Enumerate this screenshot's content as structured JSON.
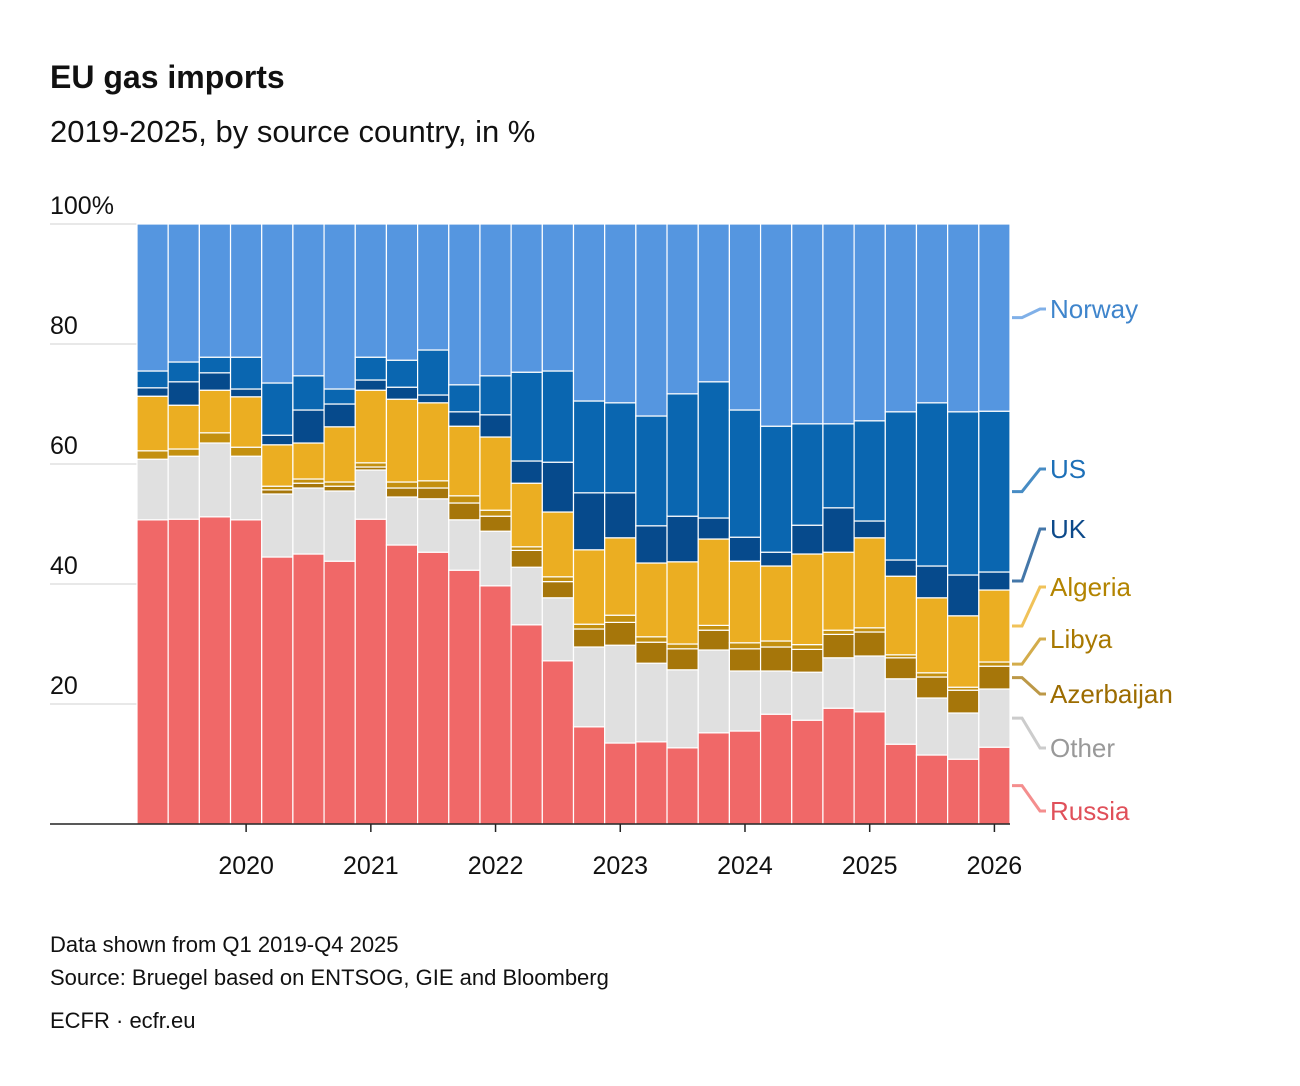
{
  "chart_data": {
    "type": "bar",
    "stacked": true,
    "title": "EU gas imports",
    "subtitle": "2019-2025, by source country, in %",
    "notes": [
      "Data shown from Q1 2019-Q4 2025",
      "Source: Bruegel based on ENTSOG, GIE and Bloomberg",
      "ECFR · ecfr.eu"
    ],
    "x": [
      2019.25,
      2019.5,
      2019.75,
      2020,
      2020.25,
      2020.5,
      2020.75,
      2021,
      2021.25,
      2021.5,
      2021.75,
      2022,
      2022.25,
      2022.5,
      2022.75,
      2023,
      2023.25,
      2023.5,
      2023.75,
      2024,
      2024.25,
      2024.5,
      2024.75,
      2025,
      2025.25,
      2025.5,
      2025.75,
      2026
    ],
    "xlim": [
      2019.125,
      2026.125
    ],
    "xticks": [
      2020,
      2021,
      2022,
      2023,
      2024,
      2025,
      2026
    ],
    "ylim": [
      0,
      100
    ],
    "yticks": [
      20,
      40,
      60,
      80,
      {
        "value": 100,
        "label": "100%"
      }
    ],
    "grid": true,
    "series": [
      {
        "name": "Russia",
        "color": "#f06868",
        "label_color": "#e0505a",
        "values": [
          50.7,
          50.8,
          51.2,
          50.7,
          44.5,
          45,
          43.8,
          50.8,
          46.5,
          45.3,
          42.3,
          39.7,
          33.2,
          27.2,
          16.2,
          13.5,
          13.7,
          12.7,
          15.2,
          15.5,
          18.3,
          17.3,
          19.3,
          18.7,
          13.3,
          11.5,
          10.8,
          12.8
        ]
      },
      {
        "name": "Other",
        "color": "#e0e0e0",
        "label_color": "#999999",
        "values": [
          10.1,
          10.5,
          12.3,
          10.6,
          10.5,
          11,
          11.7,
          8.2,
          8,
          8.9,
          8.4,
          9.1,
          9.6,
          10.5,
          13.3,
          16.3,
          13.1,
          13,
          13.8,
          10,
          7.2,
          8,
          8.4,
          9.3,
          10.9,
          9.5,
          7.7,
          9.7
        ]
      },
      {
        "name": "Azerbaijan",
        "color": "#a6760a",
        "label_color": "#9c6c00",
        "values": [
          0,
          0,
          0,
          0,
          0.7,
          0.8,
          0.8,
          0.5,
          1.5,
          1.8,
          2.8,
          2.5,
          2.8,
          2.7,
          3,
          3.8,
          3.5,
          3.5,
          3.3,
          3.7,
          4,
          3.8,
          3.9,
          4,
          3.5,
          3.5,
          3.8,
          3.8
        ]
      },
      {
        "name": "Libya",
        "color": "#c4900f",
        "label_color": "#a87800",
        "values": [
          1.4,
          1.2,
          1.7,
          1.5,
          0.6,
          0.7,
          0.7,
          0.7,
          1,
          1.2,
          1.2,
          1,
          0.6,
          0.8,
          0.8,
          1.2,
          0.9,
          0.8,
          0.8,
          1,
          1,
          0.8,
          0.7,
          0.7,
          0.5,
          0.7,
          0.5,
          0.7
        ]
      },
      {
        "name": "Algeria",
        "color": "#ebae22",
        "label_color": "#b38400",
        "values": [
          9.1,
          7.3,
          7.1,
          8.4,
          6.9,
          6,
          9.2,
          12.1,
          13.8,
          13,
          11.6,
          12.2,
          10.6,
          10.8,
          12.4,
          12.9,
          12.3,
          13.7,
          14.4,
          13.6,
          12.5,
          15.1,
          13,
          15,
          13.1,
          12.5,
          11.9,
          12
        ]
      },
      {
        "name": "UK",
        "color": "#064a8c",
        "label_color": "#0d4a8a",
        "values": [
          1.4,
          3.9,
          2.9,
          1.3,
          1.6,
          5.5,
          3.8,
          1.7,
          2,
          1.3,
          2.4,
          3.7,
          3.7,
          8.3,
          9.5,
          7.5,
          6.2,
          7.6,
          3.5,
          4,
          2.3,
          4.8,
          7.4,
          2.8,
          2.7,
          5.3,
          6.8,
          3
        ]
      },
      {
        "name": "US",
        "color": "#0a66b0",
        "label_color": "#1d70b8",
        "values": [
          2.8,
          3.3,
          2.6,
          5.3,
          8.7,
          5.7,
          2.5,
          3.8,
          4.5,
          7.5,
          4.5,
          6.5,
          14.8,
          15.2,
          15.3,
          15,
          18.3,
          20.4,
          22.7,
          21.2,
          21,
          16.9,
          14,
          16.7,
          24.7,
          27.2,
          27.2,
          26.8
        ]
      },
      {
        "name": "Norway",
        "color": "#5596e0",
        "label_color": "#3f85cc",
        "values": [
          24.5,
          23,
          22.2,
          22.2,
          26.5,
          25.3,
          27.5,
          22.2,
          22.7,
          21,
          26.8,
          25.3,
          24.7,
          24.5,
          29.5,
          29.8,
          32,
          28.3,
          26.3,
          31,
          33.7,
          33.3,
          33.3,
          32.8,
          31.3,
          29.8,
          31.3,
          31.2
        ]
      }
    ]
  }
}
